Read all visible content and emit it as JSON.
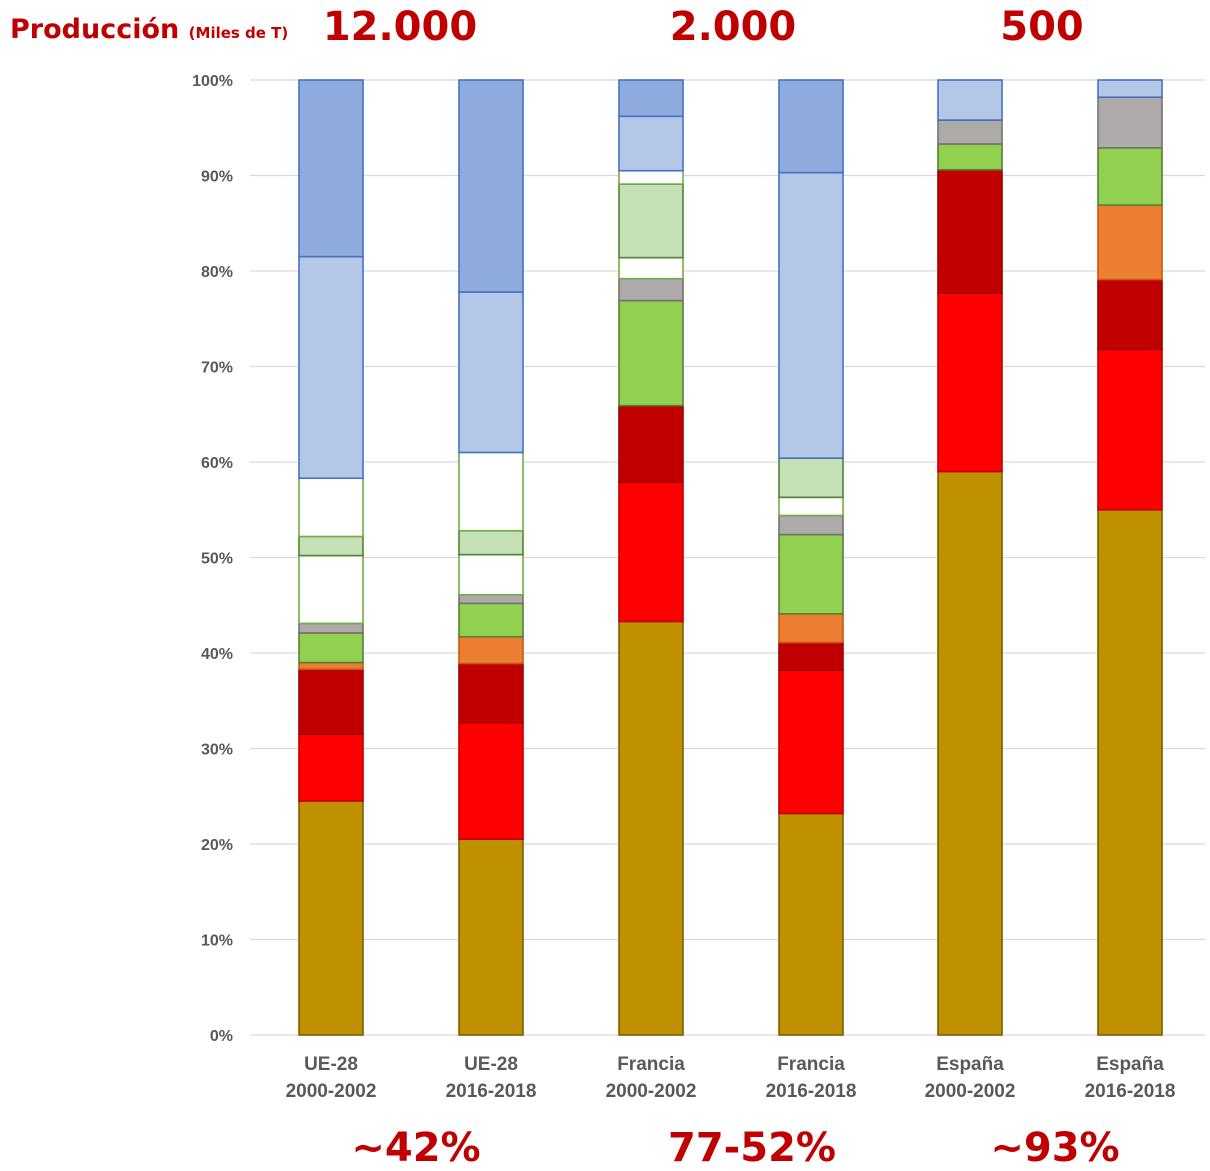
{
  "header": {
    "title": "Producción",
    "title_unit": "(Miles de T)",
    "production_values": [
      "12.000",
      "2.000",
      "500"
    ]
  },
  "footer": {
    "percentages": [
      "~42%",
      "77-52%",
      "~93%"
    ]
  },
  "chart_data": {
    "type": "bar",
    "stacked": true,
    "y_unit": "%",
    "ylim": [
      0,
      100
    ],
    "y_ticks": [
      "0%",
      "10%",
      "20%",
      "30%",
      "40%",
      "50%",
      "60%",
      "70%",
      "80%",
      "90%",
      "100%"
    ],
    "grid": true,
    "categories": [
      [
        "UE-28",
        "2000-2002"
      ],
      [
        "UE-28",
        "2016-2018"
      ],
      [
        "Francia",
        "2000-2002"
      ],
      [
        "Francia",
        "2016-2018"
      ],
      [
        "España",
        "2000-2002"
      ],
      [
        "España",
        "2016-2018"
      ]
    ],
    "segment_styles": [
      {
        "fill": "#bf9000",
        "stroke": "#7f6000"
      },
      {
        "fill": "#ff0000",
        "stroke": "#c00000"
      },
      {
        "fill": "#c00000",
        "stroke": "#a00000"
      },
      {
        "fill": "#ed7d31",
        "stroke": "#c55a11"
      },
      {
        "fill": "#92d050",
        "stroke": "#538135"
      },
      {
        "fill": "#aeaaaa",
        "stroke": "#767171"
      },
      {
        "fill": "#ffffff",
        "stroke": "#70ad47"
      },
      {
        "fill": "#c5e0b4",
        "stroke": "#538135"
      },
      {
        "fill": "#ffffff",
        "stroke": "#70ad47"
      },
      {
        "fill": "#b4c7e7",
        "stroke": "#4472c4"
      },
      {
        "fill": "#8faadc",
        "stroke": "#4472c4"
      }
    ],
    "series": [
      {
        "values": [
          24.5,
          20.5,
          43.3,
          23.2,
          59.0,
          55.0
        ]
      },
      {
        "values": [
          7.0,
          12.2,
          14.6,
          15.0,
          18.7,
          16.8
        ]
      },
      {
        "values": [
          6.8,
          6.2,
          8.0,
          2.9,
          12.9,
          7.3
        ]
      },
      {
        "values": [
          0.7,
          2.8,
          0.0,
          3.0,
          0.0,
          7.8
        ]
      },
      {
        "values": [
          3.1,
          3.5,
          11.0,
          8.3,
          2.7,
          6.0
        ]
      },
      {
        "values": [
          1.0,
          0.9,
          2.3,
          2.0,
          2.5,
          5.3
        ]
      },
      {
        "values": [
          7.1,
          4.2,
          2.2,
          1.9,
          0.0,
          0.0
        ]
      },
      {
        "values": [
          2.0,
          2.5,
          7.7,
          4.1,
          0.0,
          0.0
        ]
      },
      {
        "values": [
          6.1,
          8.2,
          1.4,
          0.0,
          0.0,
          0.0
        ]
      },
      {
        "values": [
          23.2,
          16.8,
          5.7,
          29.9,
          4.2,
          1.8
        ]
      },
      {
        "values": [
          18.5,
          22.2,
          3.8,
          9.7,
          0.0,
          0.0
        ]
      }
    ]
  }
}
